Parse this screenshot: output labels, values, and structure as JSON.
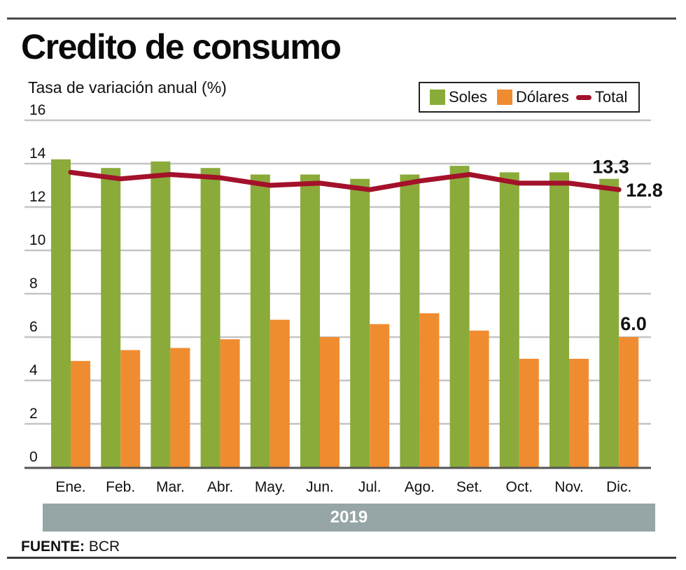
{
  "header": {
    "title": "Credito de consumo",
    "subtitle": "Tasa de variación anual (%)"
  },
  "legend": {
    "items": [
      {
        "label": "Soles",
        "color": "#8aab3a",
        "kind": "bar"
      },
      {
        "label": "Dólares",
        "color": "#f08c30",
        "kind": "bar"
      },
      {
        "label": "Total",
        "color": "#a3112a",
        "kind": "line"
      }
    ]
  },
  "footer": {
    "period_label": "2019",
    "source_label": "FUENTE:",
    "source_value": "BCR"
  },
  "chart_data": {
    "type": "bar",
    "title": "Credito de consumo",
    "subtitle": "Tasa de variación anual (%)",
    "xlabel": "2019",
    "ylabel": "Tasa de variación anual (%)",
    "ylim": [
      0,
      16
    ],
    "yticks": [
      0,
      2,
      4,
      6,
      8,
      10,
      12,
      14,
      16
    ],
    "grid": true,
    "legend_position": "top-right",
    "categories": [
      "Ene.",
      "Feb.",
      "Mar.",
      "Abr.",
      "May.",
      "Jun.",
      "Jul.",
      "Ago.",
      "Set.",
      "Oct.",
      "Nov.",
      "Dic."
    ],
    "series": [
      {
        "name": "Soles",
        "type": "bar",
        "color": "#8aab3a",
        "values": [
          14.2,
          13.8,
          14.1,
          13.8,
          13.5,
          13.5,
          13.3,
          13.5,
          13.9,
          13.6,
          13.6,
          13.3
        ]
      },
      {
        "name": "Dólares",
        "type": "bar",
        "color": "#f08c30",
        "values": [
          4.9,
          5.4,
          5.5,
          5.9,
          6.8,
          6.0,
          6.6,
          7.1,
          6.3,
          5.0,
          5.0,
          6.0
        ]
      },
      {
        "name": "Total",
        "type": "line",
        "color": "#a3112a",
        "values": [
          13.6,
          13.3,
          13.5,
          13.35,
          13.0,
          13.1,
          12.8,
          13.2,
          13.5,
          13.1,
          13.1,
          12.8
        ]
      }
    ],
    "annotations": [
      {
        "series": "Soles",
        "category": "Dic.",
        "text": "13.3"
      },
      {
        "series": "Total",
        "category": "Dic.",
        "text": "12.8"
      },
      {
        "series": "Dólares",
        "category": "Dic.",
        "text": "6.0"
      }
    ]
  }
}
